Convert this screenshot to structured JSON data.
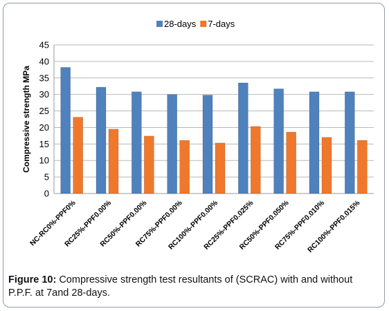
{
  "caption": {
    "label": "Figure 10:",
    "text": " Compressive strength test resultants of (SCRAC) with and without P.P.F. at 7and 28-days."
  },
  "colors": {
    "series_28": "#4f81bd",
    "series_7": "#f0782c",
    "grid": "#b8b8b8"
  },
  "chart_data": {
    "type": "bar",
    "title": "",
    "xlabel": "",
    "ylabel": "Compressive strength MPa",
    "ylim": [
      0,
      45
    ],
    "yticks": [
      0,
      5,
      10,
      15,
      20,
      25,
      30,
      35,
      40,
      45
    ],
    "grid": true,
    "legend_position": "top",
    "categories": [
      "NC-RC0%-PPF0%",
      "RC25%-PPF0.00%",
      "RC50%-PPF0.00%",
      "RC75%-PPF0.00%",
      "RC100%-PPF0.00%",
      "RC25%-PPF0.025%",
      "RC50%-PPF0.050%",
      "RC75%-PPF0.010%",
      "RC100%-PPF0.015%"
    ],
    "series": [
      {
        "name": "28-days",
        "color": "#4f81bd",
        "values": [
          38.2,
          32.2,
          30.8,
          30.0,
          29.8,
          33.5,
          31.7,
          30.8,
          30.8
        ]
      },
      {
        "name": "7-days",
        "color": "#f0782c",
        "values": [
          23.1,
          19.5,
          17.4,
          16.1,
          15.3,
          20.3,
          18.6,
          17.0,
          16.1
        ]
      }
    ]
  }
}
